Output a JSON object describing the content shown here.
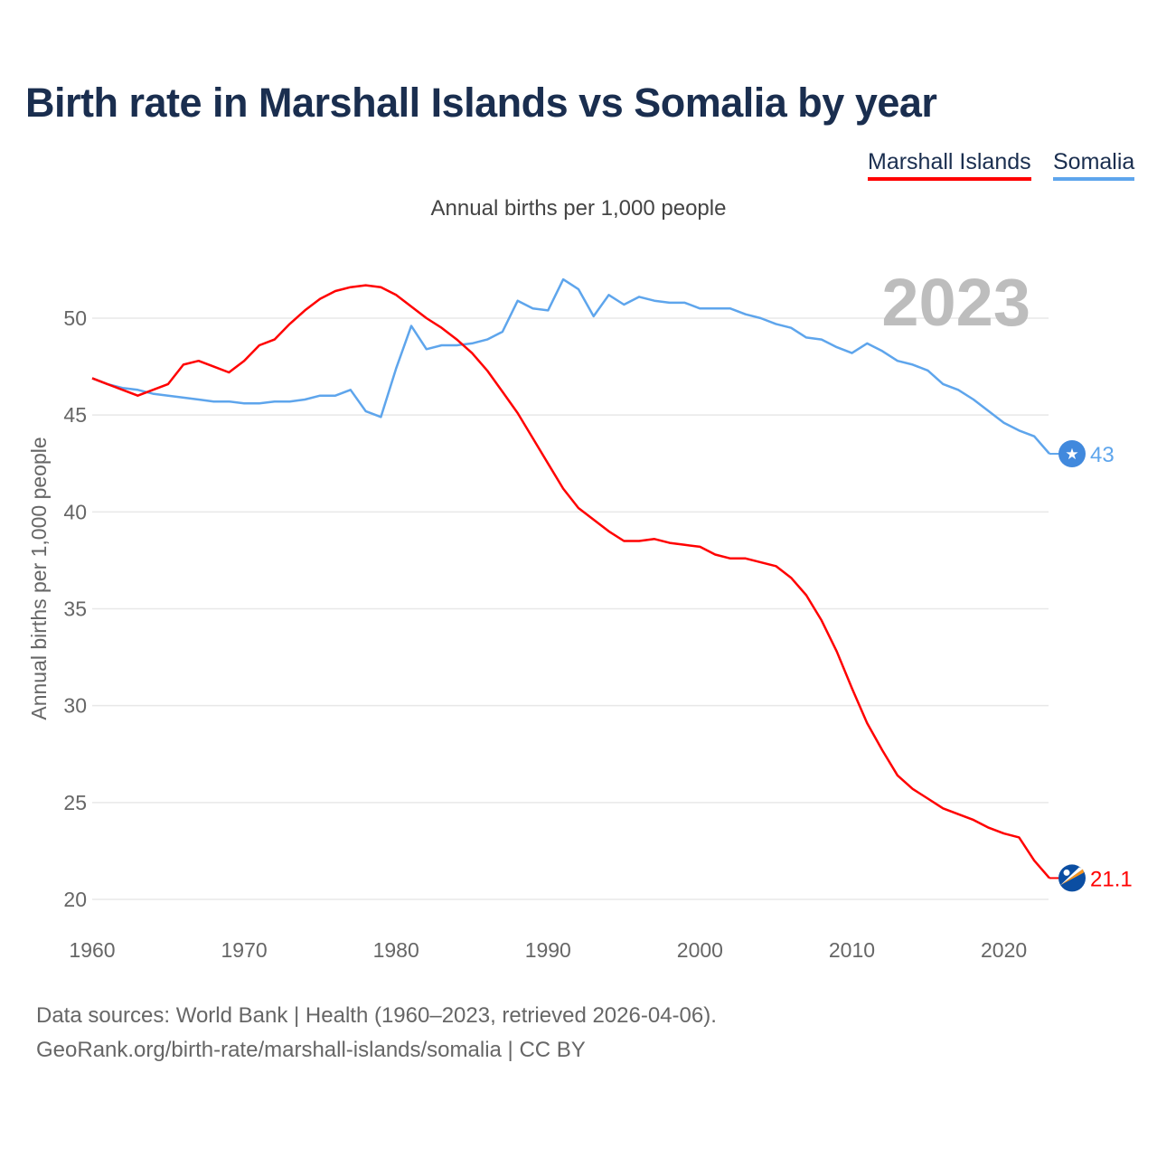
{
  "chart_data": {
    "type": "line",
    "title": "Birth rate in Marshall Islands vs Somalia by year",
    "subtitle": "Annual births per 1,000 people",
    "ylabel": "Annual births per 1,000 people",
    "xlabel": "",
    "xlim": [
      1960,
      2023
    ],
    "ylim": [
      20,
      52
    ],
    "x_ticks": [
      1960,
      1970,
      1980,
      1990,
      2000,
      2010,
      2020
    ],
    "y_ticks": [
      20,
      25,
      30,
      35,
      40,
      45,
      50
    ],
    "grid": true,
    "legend_position": "top-right",
    "year_label": "2023",
    "x": [
      1960,
      1961,
      1962,
      1963,
      1964,
      1965,
      1966,
      1967,
      1968,
      1969,
      1970,
      1971,
      1972,
      1973,
      1974,
      1975,
      1976,
      1977,
      1978,
      1979,
      1980,
      1981,
      1982,
      1983,
      1984,
      1985,
      1986,
      1987,
      1988,
      1989,
      1990,
      1991,
      1992,
      1993,
      1994,
      1995,
      1996,
      1997,
      1998,
      1999,
      2000,
      2001,
      2002,
      2003,
      2004,
      2005,
      2006,
      2007,
      2008,
      2009,
      2010,
      2011,
      2012,
      2013,
      2014,
      2015,
      2016,
      2017,
      2018,
      2019,
      2020,
      2021,
      2022,
      2023
    ],
    "series": [
      {
        "name": "Marshall Islands",
        "color": "#ff0000",
        "end_label": "21.1",
        "values": [
          46.9,
          46.6,
          46.3,
          46.0,
          46.3,
          46.6,
          47.6,
          47.8,
          47.5,
          47.2,
          47.8,
          48.6,
          48.9,
          49.7,
          50.4,
          51.0,
          51.4,
          51.6,
          51.7,
          51.6,
          51.2,
          50.6,
          50.0,
          49.5,
          48.9,
          48.2,
          47.3,
          46.2,
          45.1,
          43.8,
          42.5,
          41.2,
          40.2,
          39.6,
          39.0,
          38.5,
          38.5,
          38.6,
          38.4,
          38.3,
          38.2,
          37.8,
          37.6,
          37.6,
          37.4,
          37.2,
          36.6,
          35.7,
          34.4,
          32.8,
          30.9,
          29.1,
          27.7,
          26.4,
          25.7,
          25.2,
          24.7,
          24.4,
          24.1,
          23.7,
          23.4,
          23.2,
          22.0,
          21.1
        ]
      },
      {
        "name": "Somalia",
        "color": "#5ea5ec",
        "end_label": "43",
        "values": [
          46.9,
          46.6,
          46.4,
          46.3,
          46.1,
          46.0,
          45.9,
          45.8,
          45.7,
          45.7,
          45.6,
          45.6,
          45.7,
          45.7,
          45.8,
          46.0,
          46.0,
          46.3,
          45.2,
          44.9,
          47.4,
          49.6,
          48.4,
          48.6,
          48.6,
          48.7,
          48.9,
          49.3,
          50.9,
          50.5,
          50.4,
          52.0,
          51.5,
          50.1,
          51.2,
          50.7,
          51.1,
          50.9,
          50.8,
          50.8,
          50.5,
          50.5,
          50.5,
          50.2,
          50.0,
          49.7,
          49.5,
          49.0,
          48.9,
          48.5,
          48.2,
          48.7,
          48.3,
          47.8,
          47.6,
          47.3,
          46.6,
          46.3,
          45.8,
          45.2,
          44.6,
          44.2,
          43.9,
          43.0
        ]
      }
    ]
  },
  "footer": {
    "line1": "Data sources: World Bank | Health (1960–2023, retrieved 2026-04-06).",
    "line2": "GeoRank.org/birth-rate/marshall-islands/somalia | CC BY"
  }
}
